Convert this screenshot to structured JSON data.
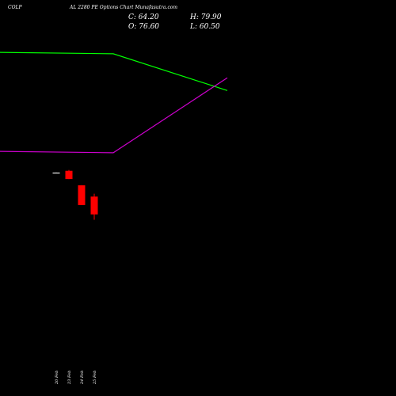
{
  "header": {
    "symbol": "COLP",
    "title": "AL 2280 PE Options Chart Munafasutra.com"
  },
  "ohlc": {
    "close": "C: 64.20",
    "high": "H: 79.90",
    "open": "O: 76.60",
    "low": "L: 60.50"
  },
  "chart_data": {
    "type": "candlestick",
    "candles": [
      {
        "date": "20 Feb",
        "open": 79.0,
        "high": 79.0,
        "low": 78.7,
        "close": 78.7,
        "color": "#ffffff"
      },
      {
        "date": "23 Feb",
        "open": 79.6,
        "high": 79.9,
        "low": 76.7,
        "close": 76.7,
        "color": "#ff0000"
      },
      {
        "date": "24 Feb",
        "open": 74.5,
        "high": 74.5,
        "low": 67.5,
        "close": 67.5,
        "color": "#ff0000"
      },
      {
        "date": "25 Feb",
        "open": 70.5,
        "high": 71.5,
        "low": 62.3,
        "close": 64.2,
        "color": "#ff0000"
      }
    ],
    "lines": [
      {
        "color": "#00ff00",
        "values": [
          121.5,
          121.0,
          108.0
        ]
      },
      {
        "color": "#cc00cc",
        "values": [
          86.5,
          86.0,
          112.5
        ]
      }
    ],
    "ylim": [
      0,
      140
    ],
    "colors": {
      "background": "#000000",
      "text": "#ffffff",
      "up": "#ffffff",
      "down": "#ff0000"
    }
  }
}
